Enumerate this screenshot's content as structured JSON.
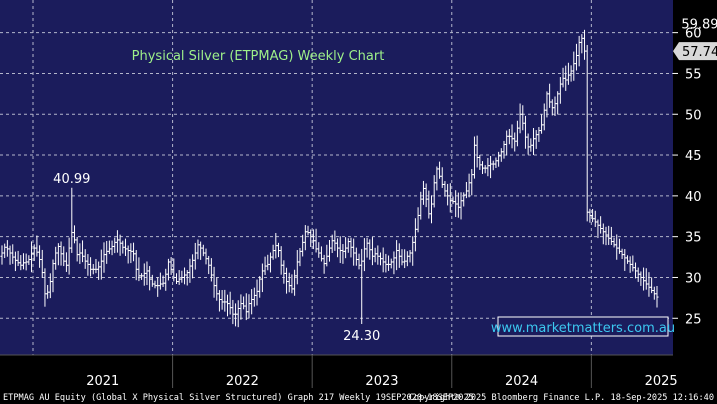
{
  "chart_data": {
    "type": "ohlc",
    "title": "Physical Silver (ETPMAG) Weekly Chart",
    "watermark": "www.marketmatters.com.au",
    "ylim": [
      20.5,
      64
    ],
    "y_ticks": [
      25,
      30,
      35,
      40,
      45,
      50,
      55,
      60
    ],
    "x_labels": [
      "2021",
      "2022",
      "2023",
      "2024",
      "2025"
    ],
    "last_price_label": "57.74",
    "last_price": 57.74,
    "annotations": [
      {
        "text": "40.99",
        "value": 40.99,
        "week": 26
      },
      {
        "text": "24.30",
        "value": 24.3,
        "week": 134
      },
      {
        "text": "59.89",
        "value": 59.89,
        "week": 260
      }
    ],
    "closes": [
      33.0,
      33.7,
      33.5,
      33.0,
      32.5,
      32.1,
      31.8,
      31.5,
      31.8,
      31.9,
      32.2,
      32.9,
      33.6,
      33.1,
      32.2,
      30.6,
      28.0,
      28.2,
      29.5,
      31.7,
      33.0,
      33.8,
      32.9,
      32.0,
      31.5,
      33.6,
      35.5,
      34.6,
      32.8,
      33.0,
      32.6,
      32.0,
      31.6,
      31.0,
      31.0,
      31.0,
      31.3,
      32.0,
      32.8,
      33.2,
      33.5,
      33.8,
      34.3,
      34.6,
      34.2,
      33.7,
      33.5,
      33.3,
      33.2,
      32.9,
      31.0,
      30.2,
      30.2,
      30.5,
      30.8,
      29.8,
      29.2,
      29.0,
      29.0,
      29.2,
      29.3,
      30.4,
      31.9,
      31.0,
      30.0,
      29.5,
      29.8,
      30.0,
      30.3,
      30.6,
      31.4,
      32.1,
      33.0,
      34.0,
      33.6,
      33.0,
      32.3,
      31.5,
      30.3,
      29.0,
      28.0,
      27.3,
      27.0,
      27.0,
      26.8,
      26.3,
      25.5,
      25.5,
      26.2,
      26.8,
      26.5,
      25.8,
      26.8,
      27.3,
      27.8,
      28.3,
      29.8,
      30.8,
      31.4,
      31.6,
      32.5,
      33.3,
      33.9,
      33.3,
      31.5,
      30.5,
      29.5,
      29.0,
      28.6,
      30.2,
      31.9,
      33.2,
      34.3,
      35.6,
      35.5,
      35.0,
      34.5,
      33.5,
      33.0,
      32.3,
      31.7,
      32.6,
      33.6,
      34.5,
      34.2,
      33.6,
      33.3,
      33.2,
      33.6,
      34.4,
      33.7,
      33.0,
      32.2,
      31.5,
      32.0,
      33.5,
      34.2,
      33.4,
      32.6,
      32.9,
      32.6,
      32.3,
      31.9,
      31.6,
      31.6,
      31.9,
      32.4,
      33.3,
      32.6,
      31.9,
      32.0,
      32.6,
      33.0,
      34.3,
      35.9,
      37.6,
      39.6,
      40.9,
      39.6,
      37.8,
      39.0,
      41.6,
      43.3,
      42.4,
      41.4,
      40.6,
      40.0,
      39.4,
      39.3,
      39.0,
      38.6,
      39.4,
      40.1,
      40.6,
      41.6,
      42.6,
      46.2,
      44.7,
      43.8,
      43.4,
      43.4,
      43.7,
      43.9,
      43.9,
      44.3,
      44.9,
      45.4,
      46.3,
      47.3,
      47.3,
      47.0,
      46.7,
      48.3,
      50.0,
      48.9,
      47.2,
      46.0,
      46.2,
      47.0,
      47.5,
      48.0,
      48.7,
      50.5,
      52.5,
      51.5,
      50.8,
      51.3,
      52.5,
      53.7,
      54.4,
      54.2,
      54.8,
      55.3,
      56.2,
      57.2,
      58.8,
      59.3,
      57.74,
      38.0,
      37.6,
      37.2,
      36.8,
      36.4,
      36.0,
      35.6,
      35.2,
      34.8,
      34.4,
      34.0,
      33.6,
      33.2,
      32.8,
      32.4,
      32.0,
      31.6,
      31.2,
      30.8,
      30.4,
      30.0,
      29.6,
      29.2,
      28.8,
      28.4,
      28.0,
      27.6
    ]
  },
  "footer": {
    "left": "ETPMAG AU Equity (Global X Physical Silver Structured) Graph 217  Weekly 19SEP2020-18SEP2025",
    "right": "Copyright® 2025 Bloomberg Finance L.P.   18-Sep-2025 12:16:40"
  },
  "colors": {
    "background": "#1b1c5c",
    "grid": "#b4b6cc",
    "bars": "#ffffff",
    "title": "#9ef08a",
    "label_box": "#d8d8d8"
  }
}
